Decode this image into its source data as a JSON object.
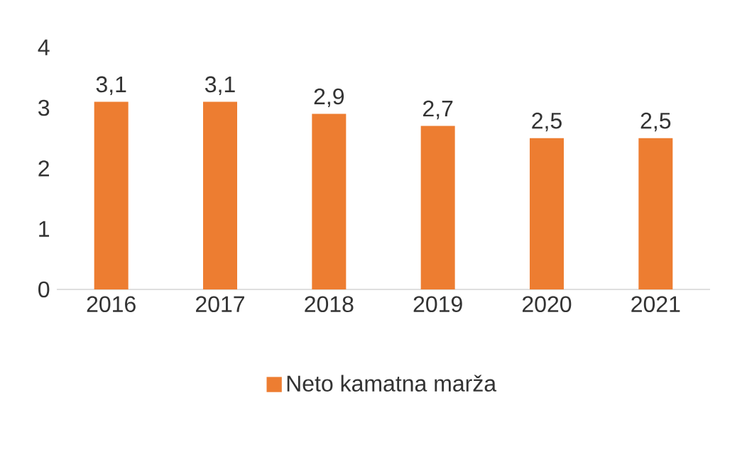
{
  "chart_data": {
    "type": "bar",
    "categories": [
      "2016",
      "2017",
      "2018",
      "2019",
      "2020",
      "2021"
    ],
    "series": [
      {
        "name": "Neto kamatna marža",
        "color": "#ed7d31",
        "values": [
          3.1,
          3.1,
          2.9,
          2.7,
          2.5,
          2.5
        ]
      }
    ],
    "value_labels": [
      "3,1",
      "3,1",
      "2,9",
      "2,7",
      "2,5",
      "2,5"
    ],
    "ylim": [
      0,
      4
    ],
    "yticks": [
      0,
      1,
      2,
      3,
      4
    ],
    "grid": false,
    "legend": "bottom"
  }
}
